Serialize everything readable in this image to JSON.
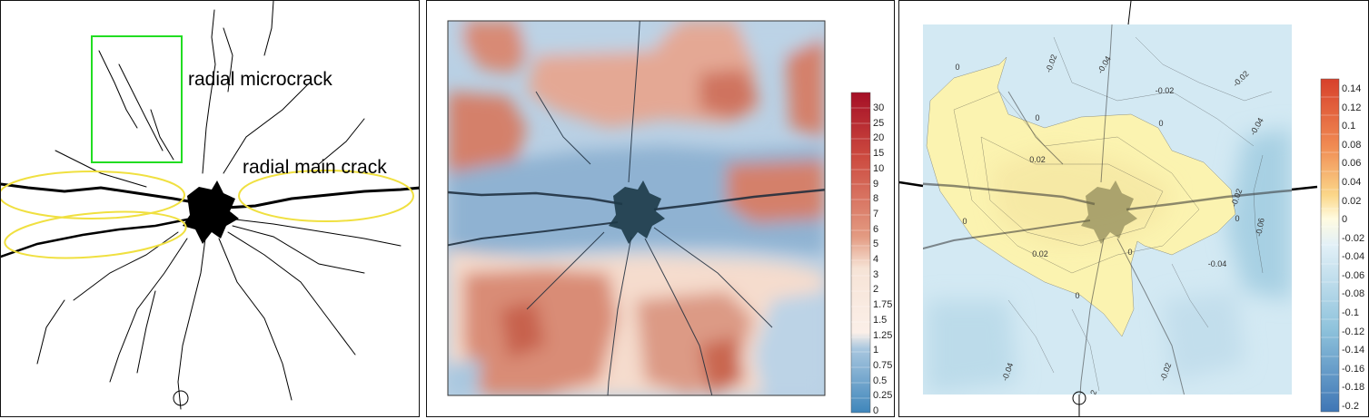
{
  "panel1": {
    "annotations": {
      "microcrack": "radial microcrack",
      "main_crack": "radial main crack"
    },
    "colors": {
      "microcrack_box": "#22dd22",
      "main_crack_ellipse": "#f0e040",
      "crack": "#000000"
    }
  },
  "panel2": {
    "colorbar_labels": [
      "30",
      "25",
      "20",
      "15",
      "10",
      "9",
      "8",
      "7",
      "6",
      "5",
      "4",
      "3",
      "2",
      "1.75",
      "1.5",
      "1.25",
      "1",
      "0.75",
      "0.5",
      "0.25",
      "0"
    ],
    "colors": {
      "high": "#b2182b",
      "mid": "#f7e8dc",
      "low": "#4a8bbd"
    }
  },
  "panel3": {
    "colorbar_labels": [
      "0.14",
      "0.12",
      "0.1",
      "0.08",
      "0.06",
      "0.04",
      "0.02",
      "0",
      "-0.02",
      "-0.04",
      "-0.06",
      "-0.08",
      "-0.1",
      "-0.12",
      "-0.14",
      "-0.16",
      "-0.18",
      "-0.2"
    ],
    "contour_labels": [
      "0",
      "-0.02",
      "-0.04",
      "-0.02",
      "-0.02",
      "0",
      "0",
      "-0.04",
      "0.02",
      "-0.02",
      "-0.06",
      "0",
      "0",
      "0.02",
      "0",
      "-0.04",
      "-0.02",
      "0",
      "-0.04",
      "-0.02"
    ],
    "colors": {
      "positive": "#fbf3b0",
      "negative": "#c6e2ef"
    }
  }
}
